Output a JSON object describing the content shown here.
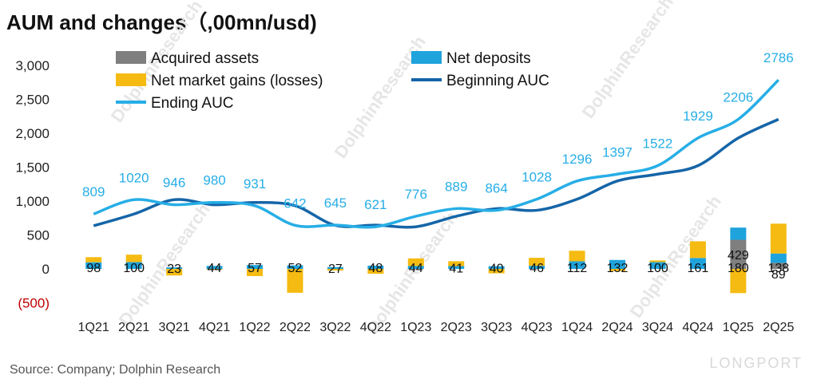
{
  "title": "AUM and changes（,00mn/usd)",
  "source": "Source: Company; Dolphin Research",
  "watermark": "LONGPORT",
  "colors": {
    "acquired": "#7f7f7f",
    "net_deposits": "#1ea3dc",
    "market_gains": "#f5bb12",
    "beginning": "#1565a8",
    "ending": "#27aee6",
    "negative_tick": "#c00000"
  },
  "chart_data": {
    "type": "bar",
    "categories": [
      "1Q21",
      "2Q21",
      "3Q21",
      "4Q21",
      "1Q22",
      "2Q22",
      "3Q22",
      "4Q22",
      "1Q23",
      "2Q23",
      "3Q23",
      "4Q23",
      "1Q24",
      "2Q24",
      "3Q24",
      "4Q24",
      "1Q25",
      "2Q25"
    ],
    "ylim": [
      -500,
      3000
    ],
    "yticks": [
      {
        "value": 3000,
        "label": "3,000"
      },
      {
        "value": 2500,
        "label": "2,500"
      },
      {
        "value": 2000,
        "label": "2,000"
      },
      {
        "value": 1500,
        "label": "1,500"
      },
      {
        "value": 1000,
        "label": "1,000"
      },
      {
        "value": 500,
        "label": "500"
      },
      {
        "value": 0,
        "label": "0"
      },
      {
        "value": -500,
        "label": "(500)"
      }
    ],
    "legend": [
      "Acquired assets",
      "Net deposits",
      "Net market gains (losses)",
      "Beginning AUC",
      "Ending AUC"
    ],
    "series": [
      {
        "name": "Acquired assets",
        "kind": "bar",
        "values": [
          0,
          0,
          0,
          0,
          0,
          0,
          0,
          0,
          0,
          0,
          0,
          0,
          0,
          0,
          0,
          0,
          429,
          89
        ],
        "labels": [
          "",
          "",
          "",
          "",
          "",
          "",
          "",
          "",
          "",
          "",
          "",
          "",
          "",
          "",
          "",
          "",
          "429",
          "89"
        ]
      },
      {
        "name": "Net deposits",
        "kind": "bar",
        "values": [
          98,
          100,
          23,
          44,
          57,
          52,
          27,
          48,
          44,
          41,
          40,
          46,
          112,
          132,
          100,
          161,
          180,
          138
        ],
        "labels": [
          "98",
          "100",
          "23",
          "44",
          "57",
          "52",
          "27",
          "48",
          "44",
          "41",
          "40",
          "46",
          "112",
          "132",
          "100",
          "161",
          "180",
          "138"
        ]
      },
      {
        "name": "Net market gains (losses)",
        "kind": "bar",
        "values": [
          75,
          110,
          -97,
          -8,
          -106,
          -352,
          -24,
          -72,
          111,
          72,
          -65,
          118,
          156,
          -31,
          25,
          246,
          -357,
          440
        ]
      },
      {
        "name": "Beginning AUC",
        "kind": "line",
        "values": [
          636,
          809,
          1020,
          946,
          980,
          931,
          642,
          645,
          621,
          776,
          889,
          864,
          1028,
          1296,
          1397,
          1522,
          1929,
          2206
        ]
      },
      {
        "name": "Ending AUC",
        "kind": "line",
        "values": [
          809,
          1020,
          946,
          980,
          931,
          642,
          645,
          621,
          776,
          889,
          864,
          1028,
          1296,
          1397,
          1522,
          1929,
          2206,
          2786
        ],
        "labels": [
          "809",
          "1020",
          "946",
          "980",
          "931",
          "642",
          "645",
          "621",
          "776",
          "889",
          "864",
          "1028",
          "1296",
          "1397",
          "1522",
          "1929",
          "2206",
          "2786"
        ]
      }
    ]
  }
}
